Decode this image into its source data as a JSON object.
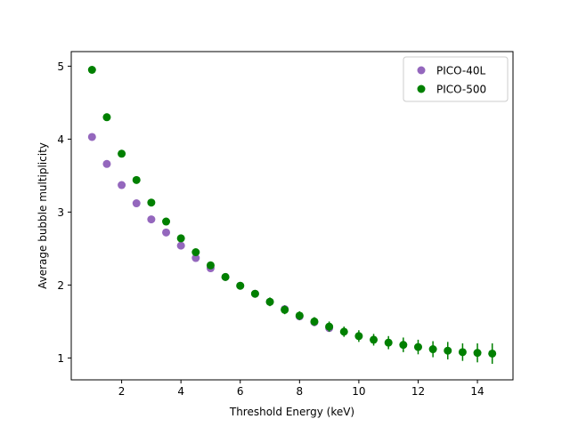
{
  "chart_data": {
    "type": "scatter",
    "xlabel": "Threshold Energy (keV)",
    "ylabel": "Average bubble multiplicity",
    "xlim": [
      0.3,
      15.2
    ],
    "ylim": [
      0.7,
      5.2
    ],
    "xticks": [
      2,
      4,
      6,
      8,
      10,
      12,
      14
    ],
    "yticks": [
      1,
      2,
      3,
      4,
      5
    ],
    "grid": false,
    "legend_position": "top-right",
    "series": [
      {
        "name": "PICO-40L",
        "color": "#9467bd",
        "x": [
          1.0,
          1.5,
          2.0,
          2.5,
          3.0,
          3.5,
          4.0,
          4.5,
          5.0,
          5.5,
          6.0,
          6.5,
          7.0,
          7.5,
          8.0,
          8.5,
          9.0
        ],
        "y": [
          4.03,
          3.66,
          3.37,
          3.12,
          2.9,
          2.72,
          2.54,
          2.37,
          2.23,
          2.11,
          1.99,
          1.88,
          1.77,
          1.67,
          1.57,
          1.49,
          1.41
        ],
        "yerr": [
          0,
          0,
          0,
          0,
          0,
          0,
          0,
          0,
          0,
          0,
          0,
          0,
          0,
          0,
          0,
          0,
          0
        ]
      },
      {
        "name": "PICO-500",
        "color": "#008000",
        "x": [
          1.0,
          1.5,
          2.0,
          2.5,
          3.0,
          3.5,
          4.0,
          4.5,
          5.0,
          5.5,
          6.0,
          6.5,
          7.0,
          7.5,
          8.0,
          8.5,
          9.0,
          9.5,
          10.0,
          10.5,
          11.0,
          11.5,
          12.0,
          12.5,
          13.0,
          13.5,
          14.0,
          14.5
        ],
        "y": [
          4.95,
          4.3,
          3.8,
          3.44,
          3.13,
          2.87,
          2.64,
          2.45,
          2.27,
          2.11,
          1.99,
          1.88,
          1.77,
          1.66,
          1.58,
          1.5,
          1.43,
          1.36,
          1.3,
          1.25,
          1.21,
          1.18,
          1.15,
          1.12,
          1.1,
          1.08,
          1.07,
          1.06
        ],
        "yerr": [
          0.04,
          0.04,
          0.04,
          0.04,
          0.04,
          0.05,
          0.05,
          0.05,
          0.05,
          0.05,
          0.05,
          0.05,
          0.06,
          0.06,
          0.06,
          0.06,
          0.07,
          0.07,
          0.08,
          0.08,
          0.09,
          0.1,
          0.1,
          0.11,
          0.12,
          0.12,
          0.13,
          0.14
        ]
      }
    ]
  }
}
